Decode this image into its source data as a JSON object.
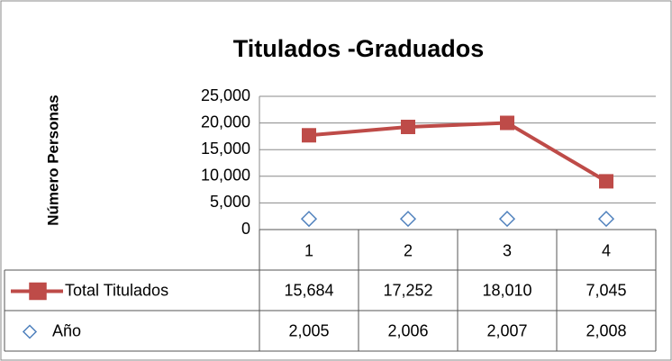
{
  "chart_data": {
    "type": "line",
    "stacked": true,
    "title": "Titulados -Graduados",
    "y_label": "Número Personas",
    "categories": [
      1,
      2,
      3,
      4
    ],
    "series": [
      {
        "name": "Año",
        "color": "#4f81bd",
        "marker": "diamond",
        "values": [
          2005,
          2006,
          2007,
          2008
        ],
        "value_labels": [
          "2,005",
          "2,006",
          "2,007",
          "2,008"
        ]
      },
      {
        "name": "Total Titulados",
        "color": "#be4b48",
        "marker": "square",
        "values": [
          15684,
          17252,
          18010,
          7045
        ],
        "value_labels": [
          "15,684",
          "17,252",
          "18,010",
          "7,045"
        ]
      }
    ],
    "ylim": [
      0,
      25000
    ],
    "yticks": [
      0,
      {
        "value": 5000,
        "label": "5,000"
      },
      {
        "value": 10000,
        "label": "10,000"
      },
      {
        "value": 15000,
        "label": "15,000"
      },
      {
        "value": 20000,
        "label": "20,000"
      },
      {
        "value": 25000,
        "label": "25,000"
      }
    ],
    "grid": true,
    "data_table": true
  }
}
